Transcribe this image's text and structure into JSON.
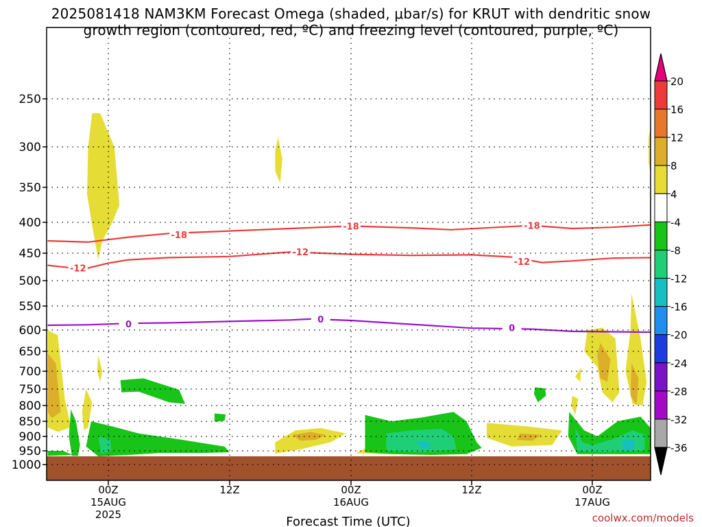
{
  "title_line1": "2025081418 NAM3KM Forecast Omega (shaded, μbar/s) for KRUT with dendritic snow",
  "title_line2": "growth region (contoured, red, ºC) and freezing level (contoured, purple, ºC)",
  "credit": "coolwx.com/models",
  "chart_data": {
    "type": "heatmap",
    "xlabel": "Forecast Time (UTC)",
    "ylabel": "",
    "x_ticks": [
      {
        "label": "00Z",
        "sub": "15AUG",
        "sub2": "2025",
        "hour": 6
      },
      {
        "label": "12Z",
        "sub": "",
        "sub2": "",
        "hour": 18
      },
      {
        "label": "00Z",
        "sub": "16AUG",
        "sub2": "",
        "hour": 30
      },
      {
        "label": "12Z",
        "sub": "",
        "sub2": "",
        "hour": 42
      },
      {
        "label": "00Z",
        "sub": "17AUG",
        "sub2": "",
        "hour": 54
      }
    ],
    "xlim_hours": [
      0,
      60
    ],
    "y_pressure_levels": [
      250,
      300,
      350,
      400,
      450,
      500,
      550,
      600,
      650,
      700,
      750,
      800,
      850,
      900,
      950,
      1000
    ],
    "ylim_hPa": [
      200,
      1030
    ],
    "surface_hPa": 970,
    "grid": true,
    "colorbar": {
      "labels": [
        "20",
        "16",
        "12",
        "8",
        "4",
        "-4",
        "-8",
        "-12",
        "-16",
        "-20",
        "-24",
        "-28",
        "-32",
        "-36"
      ],
      "colors": [
        "#e6007a",
        "#ee3a3a",
        "#e6782b",
        "#dcae2a",
        "#e5dd35",
        "#ffffff",
        "#18c418",
        "#1fcf78",
        "#16c0c0",
        "#1e8ef0",
        "#1e3be0",
        "#7a14c8",
        "#a20ac8",
        "#a8a8a8",
        "#000000"
      ]
    },
    "contours": [
      {
        "name": "-18",
        "color": "#ee3a3a",
        "label": "-18",
        "points": [
          [
            0,
            430
          ],
          [
            4,
            432
          ],
          [
            6,
            428
          ],
          [
            8,
            424
          ],
          [
            12,
            418
          ],
          [
            18,
            414
          ],
          [
            24,
            410
          ],
          [
            30,
            406
          ],
          [
            36,
            409
          ],
          [
            40,
            412
          ],
          [
            48,
            405
          ],
          [
            52,
            410
          ],
          [
            56,
            408
          ],
          [
            60,
            404
          ]
        ],
        "label_at": [
          [
            13,
            420
          ],
          [
            30,
            406
          ],
          [
            48,
            405
          ]
        ]
      },
      {
        "name": "-12",
        "color": "#ee3a3a",
        "label": "-12",
        "points": [
          [
            0,
            472
          ],
          [
            2,
            476
          ],
          [
            4,
            477
          ],
          [
            6,
            468
          ],
          [
            8,
            462
          ],
          [
            12,
            458
          ],
          [
            18,
            456
          ],
          [
            24,
            448
          ],
          [
            30,
            452
          ],
          [
            36,
            454
          ],
          [
            42,
            453
          ],
          [
            46,
            457
          ],
          [
            49,
            467
          ],
          [
            52,
            464
          ],
          [
            56,
            459
          ],
          [
            60,
            458
          ]
        ],
        "label_at": [
          [
            3,
            477
          ],
          [
            25,
            448
          ],
          [
            47,
            465
          ]
        ]
      },
      {
        "name": "0",
        "color": "#9a12c8",
        "label": "0",
        "points": [
          [
            0,
            590
          ],
          [
            4,
            589
          ],
          [
            8,
            586
          ],
          [
            12,
            585
          ],
          [
            18,
            582
          ],
          [
            24,
            579
          ],
          [
            26,
            577
          ],
          [
            30,
            580
          ],
          [
            36,
            588
          ],
          [
            42,
            596
          ],
          [
            48,
            598
          ],
          [
            52,
            603
          ],
          [
            56,
            604
          ],
          [
            60,
            605
          ]
        ],
        "label_at": [
          [
            8,
            587
          ],
          [
            27,
            577
          ],
          [
            46,
            595
          ]
        ]
      }
    ],
    "omega_regions": [
      {
        "value": "4-8",
        "pts": [
          [
            4.4,
            265
          ],
          [
            5.2,
            265
          ],
          [
            6.6,
            300
          ],
          [
            7.1,
            375
          ],
          [
            6.4,
            400
          ],
          [
            5.4,
            430
          ],
          [
            5.0,
            462
          ],
          [
            4.4,
            405
          ],
          [
            3.9,
            360
          ],
          [
            4.0,
            300
          ]
        ]
      },
      {
        "value": "4-8",
        "pts": [
          [
            22.8,
            290
          ],
          [
            23.2,
            315
          ],
          [
            23.0,
            345
          ],
          [
            22.5,
            330
          ],
          [
            22.5,
            305
          ]
        ]
      },
      {
        "value": "4-8",
        "pts": [
          [
            0,
            600
          ],
          [
            1.0,
            612
          ],
          [
            1.3,
            680
          ],
          [
            1.7,
            780
          ],
          [
            2.3,
            870
          ],
          [
            1.0,
            885
          ],
          [
            0,
            870
          ]
        ]
      },
      {
        "value": "8-12",
        "pts": [
          [
            0,
            655
          ],
          [
            0.8,
            680
          ],
          [
            1.1,
            760
          ],
          [
            1.3,
            820
          ],
          [
            0.4,
            840
          ],
          [
            0,
            820
          ]
        ]
      },
      {
        "value": "4-8",
        "pts": [
          [
            5.0,
            660
          ],
          [
            5.4,
            700
          ],
          [
            5.2,
            730
          ],
          [
            4.9,
            700
          ]
        ]
      },
      {
        "value": "4-8",
        "pts": [
          [
            3.8,
            750
          ],
          [
            4.4,
            790
          ],
          [
            4.0,
            870
          ],
          [
            3.6,
            880
          ],
          [
            3.4,
            820
          ]
        ]
      },
      {
        "value": "4-8",
        "pts": [
          [
            22.5,
            920
          ],
          [
            24.5,
            880
          ],
          [
            27,
            872
          ],
          [
            29.5,
            890
          ],
          [
            28,
            920
          ],
          [
            25,
            945
          ],
          [
            22.5,
            960
          ]
        ]
      },
      {
        "value": "8-12",
        "pts": [
          [
            24.2,
            895
          ],
          [
            26,
            885
          ],
          [
            27.5,
            895
          ],
          [
            26.5,
            912
          ],
          [
            25,
            915
          ]
        ]
      },
      {
        "value": "4-8",
        "pts": [
          [
            31.5,
            940
          ],
          [
            34,
            945
          ],
          [
            36,
            955
          ],
          [
            33,
            962
          ],
          [
            30.5,
            958
          ]
        ]
      },
      {
        "value": "4-8",
        "pts": [
          [
            43.5,
            855
          ],
          [
            47,
            865
          ],
          [
            51,
            880
          ],
          [
            50,
            930
          ],
          [
            46,
            935
          ],
          [
            43.5,
            905
          ]
        ]
      },
      {
        "value": "8-12",
        "pts": [
          [
            46.8,
            890
          ],
          [
            49,
            895
          ],
          [
            48,
            915
          ],
          [
            46.5,
            912
          ]
        ]
      },
      {
        "value": "4-8",
        "pts": [
          [
            53.5,
            600
          ],
          [
            55,
            595
          ],
          [
            56.3,
            620
          ],
          [
            56.7,
            760
          ],
          [
            56,
            790
          ],
          [
            55,
            760
          ],
          [
            54.5,
            690
          ],
          [
            53.2,
            650
          ]
        ]
      },
      {
        "value": "8-12",
        "pts": [
          [
            54.8,
            630
          ],
          [
            55.8,
            670
          ],
          [
            55.5,
            730
          ],
          [
            54.8,
            720
          ],
          [
            54.5,
            660
          ]
        ]
      },
      {
        "value": "4-8",
        "pts": [
          [
            57.9,
            525
          ],
          [
            58.8,
            620
          ],
          [
            59.4,
            730
          ],
          [
            59.0,
            800
          ],
          [
            58.0,
            795
          ],
          [
            57.3,
            700
          ],
          [
            57.8,
            600
          ]
        ]
      },
      {
        "value": "8-12",
        "pts": [
          [
            57.9,
            680
          ],
          [
            58.6,
            720
          ],
          [
            58.4,
            800
          ],
          [
            57.8,
            770
          ]
        ]
      },
      {
        "value": "4-8",
        "pts": [
          [
            52.3,
            715
          ],
          [
            52.9,
            690
          ],
          [
            52.8,
            730
          ]
        ]
      },
      {
        "value": "4-8",
        "pts": [
          [
            52.0,
            770
          ],
          [
            52.6,
            780
          ],
          [
            52.3,
            830
          ],
          [
            51.9,
            800
          ]
        ]
      },
      {
        "value": "4-8",
        "pts": [
          [
            59.6,
            290
          ],
          [
            60,
            270
          ],
          [
            60,
            345
          ],
          [
            59.6,
            320
          ]
        ]
      },
      {
        "value": "-4 to -8",
        "pts": [
          [
            7.2,
            725
          ],
          [
            9.5,
            720
          ],
          [
            13,
            752
          ],
          [
            13.6,
            795
          ],
          [
            12,
            790
          ],
          [
            9,
            758
          ],
          [
            7.3,
            760
          ]
        ]
      },
      {
        "value": "-4 to -8",
        "pts": [
          [
            16.5,
            825
          ],
          [
            17.6,
            828
          ],
          [
            17.5,
            848
          ],
          [
            16.5,
            852
          ]
        ]
      },
      {
        "value": "-4 to -8",
        "pts": [
          [
            4.3,
            850
          ],
          [
            6.2,
            865
          ],
          [
            9,
            890
          ],
          [
            13,
            910
          ],
          [
            17.5,
            935
          ],
          [
            18,
            955
          ],
          [
            15,
            958
          ],
          [
            11,
            958
          ],
          [
            8,
            965
          ],
          [
            5,
            970
          ],
          [
            3.8,
            935
          ]
        ]
      },
      {
        "value": "-8 to -12",
        "pts": [
          [
            5,
            900
          ],
          [
            6.2,
            910
          ],
          [
            6.3,
            950
          ],
          [
            5.3,
            960
          ]
        ]
      },
      {
        "value": "-4 to -8",
        "pts": [
          [
            0,
            950
          ],
          [
            1.5,
            950
          ],
          [
            2.5,
            965
          ],
          [
            0,
            968
          ]
        ]
      },
      {
        "value": "-4 to -8",
        "pts": [
          [
            2.3,
            812
          ],
          [
            2.8,
            850
          ],
          [
            3.2,
            930
          ],
          [
            3.0,
            968
          ],
          [
            2.4,
            968
          ],
          [
            2.1,
            900
          ]
        ]
      },
      {
        "value": "-4 to -8",
        "pts": [
          [
            31.4,
            830
          ],
          [
            34,
            850
          ],
          [
            37,
            838
          ],
          [
            40.2,
            820
          ],
          [
            41.5,
            850
          ],
          [
            42.5,
            920
          ],
          [
            43.0,
            940
          ],
          [
            41.5,
            962
          ],
          [
            38,
            965
          ],
          [
            34,
            962
          ],
          [
            31.4,
            955
          ]
        ]
      },
      {
        "value": "-8 to -12",
        "pts": [
          [
            33.5,
            890
          ],
          [
            36,
            880
          ],
          [
            39,
            875
          ],
          [
            40.2,
            900
          ],
          [
            40.5,
            945
          ],
          [
            37,
            955
          ],
          [
            33.5,
            950
          ]
        ]
      },
      {
        "value": "-12 to -16",
        "pts": [
          [
            36.5,
            920
          ],
          [
            37.5,
            915
          ],
          [
            38,
            935
          ],
          [
            37,
            942
          ]
        ]
      },
      {
        "value": "-4 to -8",
        "pts": [
          [
            48.3,
            745
          ],
          [
            49.3,
            748
          ],
          [
            49.4,
            770
          ],
          [
            48.6,
            790
          ],
          [
            48.2,
            765
          ]
        ]
      },
      {
        "value": "-4 to -8",
        "pts": [
          [
            51.7,
            820
          ],
          [
            53.2,
            880
          ],
          [
            54.5,
            900
          ],
          [
            56.5,
            850
          ],
          [
            58.8,
            835
          ],
          [
            60,
            880
          ],
          [
            60,
            962
          ],
          [
            56,
            962
          ],
          [
            52.5,
            962
          ],
          [
            51.6,
            900
          ]
        ]
      },
      {
        "value": "-8 to -12",
        "pts": [
          [
            52.3,
            870
          ],
          [
            53,
            920
          ],
          [
            54,
            930
          ],
          [
            56,
            910
          ],
          [
            58,
            880
          ],
          [
            59.2,
            895
          ],
          [
            59.2,
            950
          ],
          [
            55,
            955
          ],
          [
            52.5,
            950
          ]
        ]
      },
      {
        "value": "-12 to -16",
        "pts": [
          [
            57,
            912
          ],
          [
            58.2,
            915
          ],
          [
            58.2,
            945
          ],
          [
            57,
            948
          ]
        ]
      },
      {
        "value": "-4 to -8",
        "pts": [
          [
            41,
            875
          ],
          [
            41.6,
            882
          ],
          [
            41.3,
            895
          ],
          [
            40.9,
            890
          ]
        ]
      },
      {
        "value": "-4 to -8",
        "pts": [
          [
            32,
            900
          ],
          [
            32.7,
            905
          ],
          [
            32.5,
            915
          ]
        ]
      }
    ]
  }
}
